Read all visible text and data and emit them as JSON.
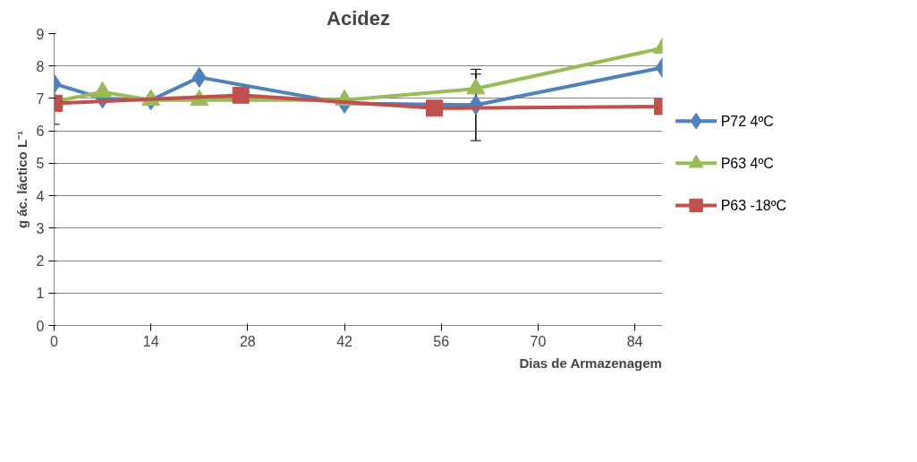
{
  "chart_data": {
    "type": "line",
    "title": "Acidez",
    "xlabel": "Dias de Armazenagem",
    "ylabel": "g ác. láctico L⁻¹",
    "xlim": [
      0,
      88
    ],
    "xticks": [
      0,
      14,
      28,
      42,
      56,
      70,
      84
    ],
    "ylim": [
      0,
      9
    ],
    "yticks": [
      0,
      1,
      2,
      3,
      4,
      5,
      6,
      7,
      8,
      9
    ],
    "grid": "y",
    "legend": "right",
    "line_style": "solid",
    "series": [
      {
        "name": "P72 4ºC",
        "color": "#4f81bd",
        "marker": "diamond",
        "x": [
          0,
          7,
          14,
          21,
          42,
          61,
          88
        ],
        "values": [
          7.45,
          7.0,
          6.95,
          7.65,
          6.85,
          6.8,
          7.95
        ],
        "errors": [
          null,
          null,
          null,
          null,
          null,
          1.1,
          null
        ]
      },
      {
        "name": "P63 4ºC",
        "color": "#9bbb59",
        "marker": "triangle",
        "x": [
          0,
          7,
          14,
          21,
          42,
          61,
          88
        ],
        "values": [
          6.9,
          7.2,
          6.95,
          6.95,
          6.95,
          7.3,
          8.55
        ],
        "errors": [
          null,
          null,
          null,
          null,
          null,
          0.45,
          null
        ]
      },
      {
        "name": "P63 -18ºC",
        "color": "#c0504d",
        "marker": "square",
        "x": [
          0,
          27,
          55,
          88
        ],
        "values": [
          6.85,
          7.1,
          6.7,
          6.75
        ],
        "errors": [
          0.65,
          null,
          null,
          null
        ]
      }
    ]
  }
}
